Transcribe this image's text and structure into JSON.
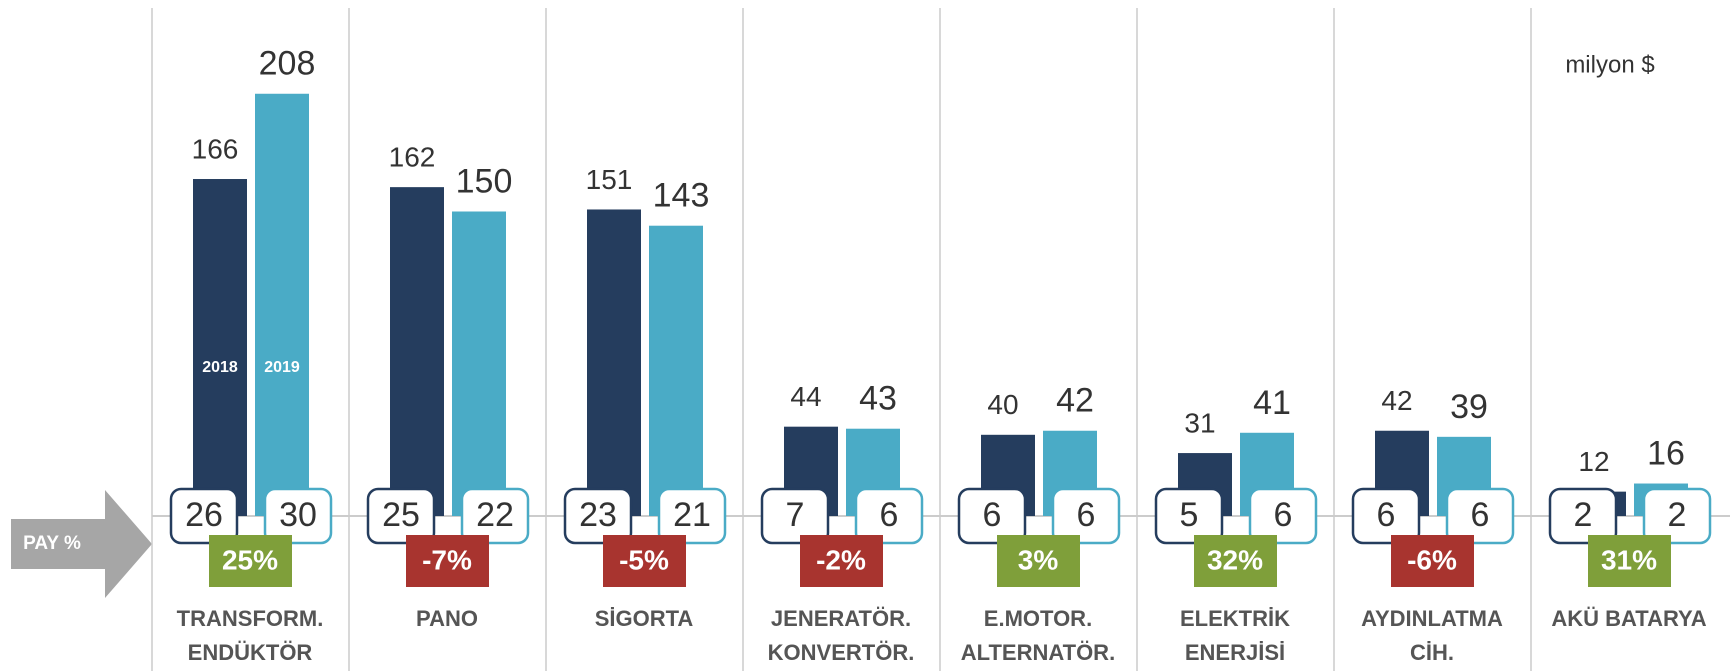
{
  "chart_data": {
    "type": "bar",
    "unit": "milyon $",
    "share_label": "PAY %",
    "categories": [
      [
        "TRANSFORM.",
        "ENDÜKTÖR"
      ],
      [
        "PANO"
      ],
      [
        "SİGORTA"
      ],
      [
        "JENERATÖR.",
        "KONVERTÖR."
      ],
      [
        "E.MOTOR.",
        "ALTERNATÖR."
      ],
      [
        "ELEKTRİK",
        "ENERJİSİ"
      ],
      [
        "AYDINLATMA",
        "CİH."
      ],
      [
        "AKÜ BATARYA"
      ]
    ],
    "series": [
      {
        "name": "2018",
        "color": "#253d5e",
        "values": [
          166,
          162,
          151,
          44,
          40,
          31,
          42,
          12
        ],
        "share": [
          26,
          25,
          23,
          7,
          6,
          5,
          6,
          2
        ]
      },
      {
        "name": "2019",
        "color": "#4aabc6",
        "values": [
          208,
          150,
          143,
          43,
          42,
          41,
          39,
          16
        ],
        "share": [
          30,
          22,
          21,
          6,
          6,
          6,
          6,
          2
        ]
      }
    ],
    "change": {
      "values": [
        25,
        -7,
        -5,
        -2,
        3,
        32,
        -6,
        31
      ],
      "value_labels": [
        "25%",
        "-7%",
        "-5%",
        "-2%",
        "3%",
        "32%",
        "-6%",
        "31%"
      ],
      "positive_color": "#7f9f3a",
      "negative_color": "#a8342f"
    }
  }
}
